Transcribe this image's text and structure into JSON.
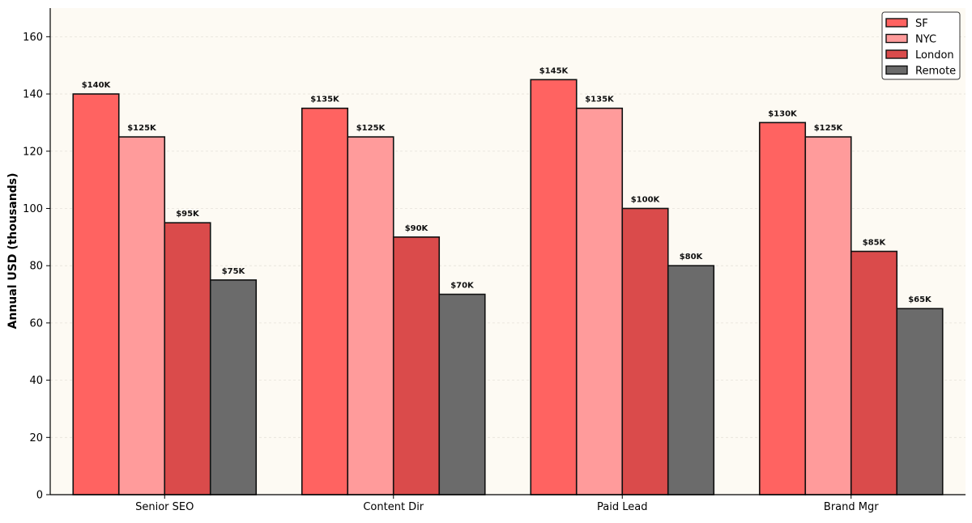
{
  "colors": {
    "plot_background": "#fdfaf3",
    "grid": "#e6e2da",
    "axis": "#000000",
    "bar_edge": "#111111"
  },
  "chart_data": {
    "type": "bar",
    "title": "",
    "xlabel": "",
    "ylabel": "Annual USD (thousands)",
    "ylim": [
      0,
      170
    ],
    "yticks": [
      0,
      20,
      40,
      60,
      80,
      100,
      120,
      140,
      160
    ],
    "grid": true,
    "legend_position": "top-right",
    "categories": [
      "Senior SEO",
      "Content Dir",
      "Paid Lead",
      "Brand Mgr"
    ],
    "series": [
      {
        "name": "SF",
        "color": "#ff6361",
        "values": [
          140,
          135,
          145,
          130
        ],
        "labels": [
          "$140K",
          "$135K",
          "$145K",
          "$130K"
        ]
      },
      {
        "name": "NYC",
        "color": "#ff9b9b",
        "values": [
          125,
          125,
          135,
          125
        ],
        "labels": [
          "$125K",
          "$125K",
          "$135K",
          "$125K"
        ]
      },
      {
        "name": "London",
        "color": "#da4b4b",
        "values": [
          95,
          90,
          100,
          85
        ],
        "labels": [
          "$95K",
          "$90K",
          "$100K",
          "$85K"
        ]
      },
      {
        "name": "Remote",
        "color": "#6b6b6b",
        "values": [
          75,
          70,
          80,
          65
        ],
        "labels": [
          "$75K",
          "$70K",
          "$80K",
          "$65K"
        ]
      }
    ]
  }
}
